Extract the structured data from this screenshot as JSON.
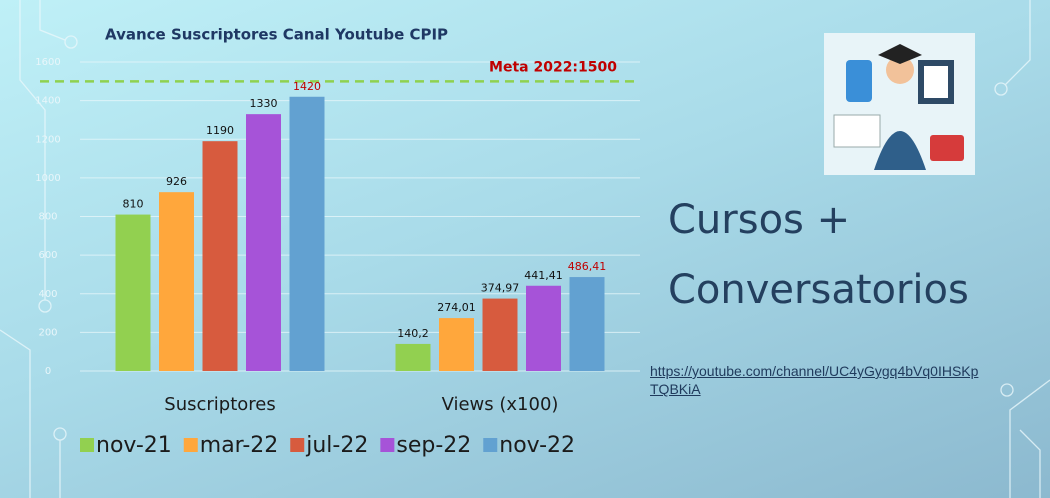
{
  "chart_data": {
    "type": "bar",
    "title": "Avance  Suscriptores Canal Youtube CPIP",
    "categories": [
      "Suscriptores",
      "Views (x100)"
    ],
    "series": [
      {
        "name": "nov-21",
        "color": "#92d050",
        "values": [
          810,
          140.2
        ],
        "value_labels": [
          "810",
          "140,2"
        ]
      },
      {
        "name": "mar-22",
        "color": "#ffa73c",
        "values": [
          926,
          274.01
        ],
        "value_labels": [
          "926",
          "274,01"
        ]
      },
      {
        "name": "jul-22",
        "color": "#d75b3e",
        "values": [
          1190,
          374.97
        ],
        "value_labels": [
          "1190",
          "374,97"
        ]
      },
      {
        "name": "sep-22",
        "color": "#a653d8",
        "values": [
          1330,
          441.41
        ],
        "value_labels": [
          "1330",
          "441,41"
        ]
      },
      {
        "name": "nov-22",
        "color": "#62a1d1",
        "values": [
          1420,
          486.41
        ],
        "value_labels": [
          "1420",
          "486,41"
        ],
        "label_color": "#c00000"
      }
    ],
    "ylim": [
      0,
      1600
    ],
    "yticks": [
      0,
      200,
      400,
      600,
      800,
      1000,
      1200,
      1400,
      1600
    ],
    "grid": true,
    "reference_line": {
      "value": 1500,
      "label": "Meta 2022:1500",
      "color": "#8fd14f"
    },
    "legend": "bottom"
  },
  "slide": {
    "heading_lines": [
      "Cursos +",
      "Conversatorios"
    ],
    "link": "https://youtube.com/channel/UC4yGygq4bVq0IHSKpTQBKiA"
  }
}
